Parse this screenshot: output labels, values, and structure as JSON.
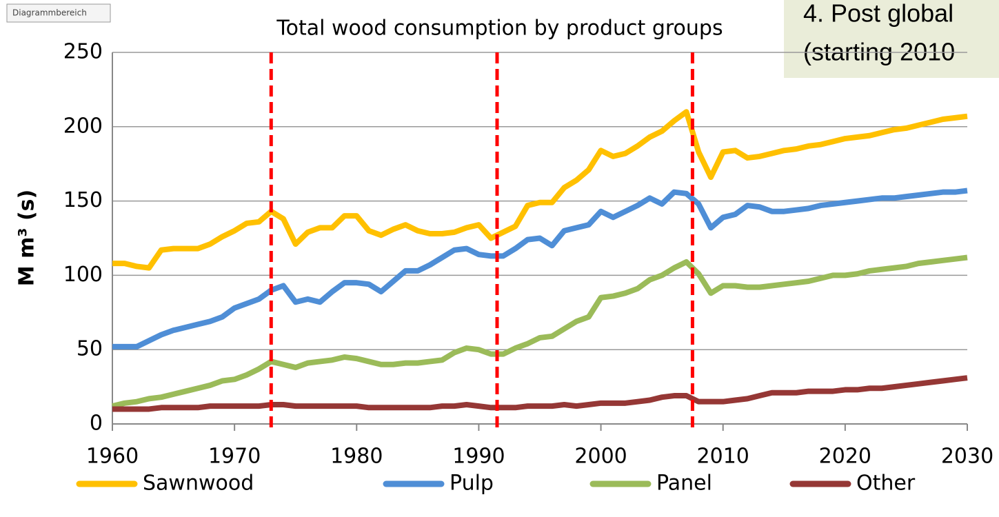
{
  "chart_data": {
    "type": "line",
    "title": "Total wood consumption by product groups",
    "ylabel": "M m³ (s)",
    "tooltip": "Diagrammbereich",
    "annotation": [
      "4. Post global",
      "(starting 2010"
    ],
    "x": [
      1960,
      1961,
      1962,
      1963,
      1964,
      1965,
      1966,
      1967,
      1968,
      1969,
      1970,
      1971,
      1972,
      1973,
      1974,
      1975,
      1976,
      1977,
      1978,
      1979,
      1980,
      1981,
      1982,
      1983,
      1984,
      1985,
      1986,
      1987,
      1988,
      1989,
      1990,
      1991,
      1992,
      1993,
      1994,
      1995,
      1996,
      1997,
      1998,
      1999,
      2000,
      2001,
      2002,
      2003,
      2004,
      2005,
      2006,
      2007,
      2008,
      2009,
      2010,
      2011,
      2012,
      2013,
      2014,
      2015,
      2016,
      2017,
      2018,
      2019,
      2020,
      2021,
      2022,
      2023,
      2024,
      2025,
      2026,
      2027,
      2028,
      2029,
      2030
    ],
    "series": [
      {
        "name": "Sawnwood",
        "color": "#ffc000",
        "values": [
          108,
          108,
          106,
          105,
          117,
          118,
          118,
          118,
          121,
          126,
          130,
          135,
          136,
          143,
          138,
          121,
          129,
          132,
          132,
          140,
          140,
          130,
          127,
          131,
          134,
          130,
          128,
          128,
          129,
          132,
          134,
          125,
          129,
          133,
          147,
          149,
          149,
          159,
          164,
          171,
          184,
          180,
          182,
          187,
          193,
          197,
          204,
          210,
          183,
          166,
          183,
          184,
          179,
          180,
          182,
          184,
          185,
          187,
          188,
          190,
          192,
          193,
          194,
          196,
          198,
          199,
          201,
          203,
          205,
          206,
          207
        ]
      },
      {
        "name": "Pulp",
        "color": "#4f8ed6",
        "values": [
          52,
          52,
          52,
          56,
          60,
          63,
          65,
          67,
          69,
          72,
          78,
          81,
          84,
          90,
          93,
          82,
          84,
          82,
          89,
          95,
          95,
          94,
          89,
          96,
          103,
          103,
          107,
          112,
          117,
          118,
          114,
          113,
          113,
          118,
          124,
          125,
          120,
          130,
          132,
          134,
          143,
          139,
          143,
          147,
          152,
          148,
          156,
          155,
          148,
          132,
          139,
          141,
          147,
          146,
          143,
          143,
          144,
          145,
          147,
          148,
          149,
          150,
          151,
          152,
          152,
          153,
          154,
          155,
          156,
          156,
          157
        ]
      },
      {
        "name": "Panel",
        "color": "#9bbb59",
        "values": [
          12,
          14,
          15,
          17,
          18,
          20,
          22,
          24,
          26,
          29,
          30,
          33,
          37,
          42,
          40,
          38,
          41,
          42,
          43,
          45,
          44,
          42,
          40,
          40,
          41,
          41,
          42,
          43,
          48,
          51,
          50,
          47,
          47,
          51,
          54,
          58,
          59,
          64,
          69,
          72,
          85,
          86,
          88,
          91,
          97,
          100,
          105,
          109,
          101,
          88,
          93,
          93,
          92,
          92,
          93,
          94,
          95,
          96,
          98,
          100,
          100,
          101,
          103,
          104,
          105,
          106,
          108,
          109,
          110,
          111,
          112
        ]
      },
      {
        "name": "Other",
        "color": "#953735",
        "values": [
          10,
          10,
          10,
          10,
          11,
          11,
          11,
          11,
          12,
          12,
          12,
          12,
          12,
          13,
          13,
          12,
          12,
          12,
          12,
          12,
          12,
          11,
          11,
          11,
          11,
          11,
          11,
          12,
          12,
          13,
          12,
          11,
          11,
          11,
          12,
          12,
          12,
          13,
          12,
          13,
          14,
          14,
          14,
          15,
          16,
          18,
          19,
          19,
          15,
          15,
          15,
          16,
          17,
          19,
          21,
          21,
          21,
          22,
          22,
          22,
          23,
          23,
          24,
          24,
          25,
          26,
          27,
          28,
          29,
          30,
          31
        ]
      }
    ],
    "vlines": [
      1973,
      1991.5,
      2007.5
    ],
    "vline_color": "#ff0000",
    "xlim": [
      1960,
      2030
    ],
    "xticks": [
      1960,
      1970,
      1980,
      1990,
      2000,
      2010,
      2020,
      2030
    ],
    "ylim": [
      0,
      250
    ],
    "yticks": [
      0,
      50,
      100,
      150,
      200,
      250
    ],
    "grid": true,
    "legend": "bottom"
  }
}
